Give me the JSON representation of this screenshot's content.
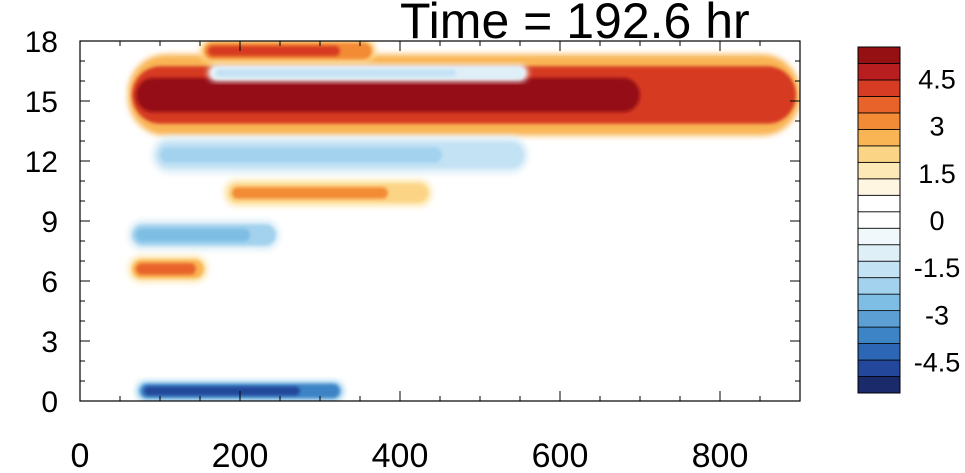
{
  "chart_data": {
    "type": "heatmap",
    "title": "Time = 192.6 hr",
    "xlabel": "",
    "ylabel": "",
    "xlim": [
      0,
      900
    ],
    "ylim": [
      0,
      18
    ],
    "x_ticks": [
      "0",
      "200",
      "400",
      "600",
      "800"
    ],
    "x_tick_values": [
      0,
      200,
      400,
      600,
      800
    ],
    "y_ticks": [
      "0",
      "3",
      "6",
      "9",
      "12",
      "15",
      "18"
    ],
    "y_tick_values": [
      0,
      3,
      6,
      9,
      12,
      15,
      18
    ],
    "grid": false,
    "colorbar": {
      "placement": "right",
      "range": [
        -5.5,
        5.5
      ],
      "step": 0.5,
      "labels": [
        "4.5",
        "3",
        "1.5",
        "0",
        "-1.5",
        "-3",
        "-4.5"
      ],
      "label_values": [
        4.5,
        3,
        1.5,
        0,
        -1.5,
        -3,
        -4.5
      ],
      "colors": [
        "#1b2a6b",
        "#23479a",
        "#2c66b5",
        "#3d84c6",
        "#5b9fd3",
        "#7ebde4",
        "#a3d2ee",
        "#c3e2f4",
        "#deeff8",
        "#f0f8fc",
        "#ffffff",
        "#ffffff",
        "#fff6e2",
        "#fde9b6",
        "#fcd486",
        "#f9b554",
        "#f38b36",
        "#e8632a",
        "#d63b24",
        "#b81d1f",
        "#951013"
      ]
    },
    "features": [
      {
        "x": [
          60,
          900
        ],
        "y_center": 15.3,
        "thickness": 2.4,
        "value": 5.5
      },
      {
        "x": [
          150,
          370
        ],
        "y_center": 17.5,
        "thickness": 0.7,
        "value": 3.5
      },
      {
        "x": [
          160,
          560
        ],
        "y_center": 16.4,
        "thickness": 0.5,
        "value": -2
      },
      {
        "x": [
          90,
          560
        ],
        "y_center": 12.3,
        "thickness": 1.1,
        "value": -2.5
      },
      {
        "x": [
          180,
          440
        ],
        "y_center": 10.4,
        "thickness": 0.8,
        "value": 2.5
      },
      {
        "x": [
          60,
          250
        ],
        "y_center": 8.3,
        "thickness": 0.9,
        "value": -3
      },
      {
        "x": [
          60,
          160
        ],
        "y_center": 6.6,
        "thickness": 0.8,
        "value": 3
      },
      {
        "x": [
          70,
          330
        ],
        "y_center": 0.5,
        "thickness": 0.6,
        "value": -5
      }
    ]
  }
}
